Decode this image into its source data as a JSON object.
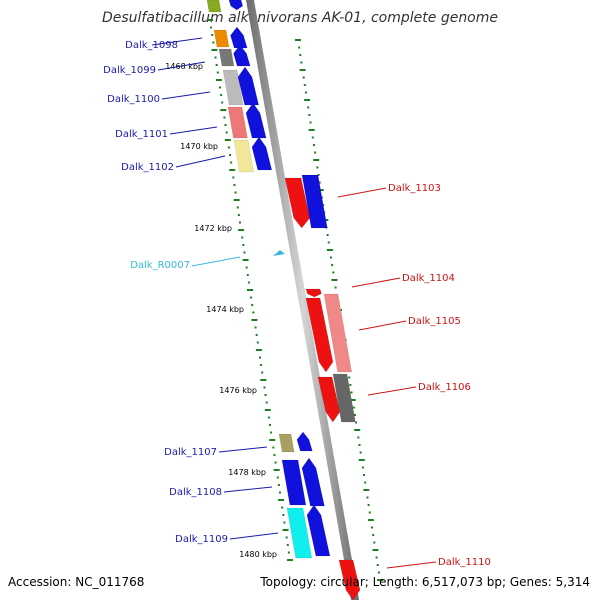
{
  "title": "Desulfatibacillum alkenivorans AK-01, complete genome",
  "footer": {
    "accession": "Accession: NC_011768",
    "summary": "Topology: circular; Length: 6,517,073 bp; Genes: 5,314"
  },
  "colors": {
    "backbone": "#909090",
    "tick": "#1f7f1f",
    "left_label": "#1a1aaa",
    "right_label": "#cc1111",
    "rna_label": "#33bbdd"
  },
  "scale": {
    "unit": "kbp",
    "ticks": [
      "1468 kbp",
      "1470 kbp",
      "1472 kbp",
      "1474 kbp",
      "1476 kbp",
      "1478 kbp",
      "1480 kbp"
    ]
  },
  "genes": [
    {
      "label": "Dalk_1098",
      "side": "left"
    },
    {
      "label": "Dalk_1099",
      "side": "left"
    },
    {
      "label": "Dalk_1100",
      "side": "left"
    },
    {
      "label": "Dalk_1101",
      "side": "left"
    },
    {
      "label": "Dalk_1102",
      "side": "left"
    },
    {
      "label": "Dalk_1103",
      "side": "right"
    },
    {
      "label": "Dalk_R0007",
      "side": "left",
      "type": "rna"
    },
    {
      "label": "Dalk_1104",
      "side": "right"
    },
    {
      "label": "Dalk_1105",
      "side": "right"
    },
    {
      "label": "Dalk_1106",
      "side": "right"
    },
    {
      "label": "Dalk_1107",
      "side": "left"
    },
    {
      "label": "Dalk_1108",
      "side": "left"
    },
    {
      "label": "Dalk_1109",
      "side": "left"
    },
    {
      "label": "Dalk_1110",
      "side": "right"
    }
  ]
}
